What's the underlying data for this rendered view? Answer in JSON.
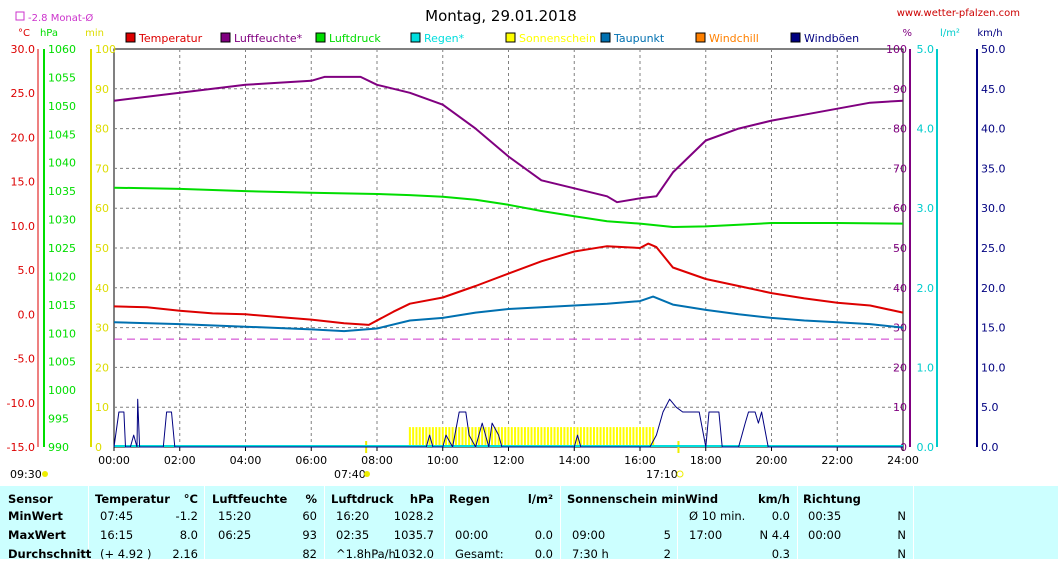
{
  "title": "Montag, 29.01.2018",
  "site": "www.wetter-pfalzen.com",
  "monthly_avg": "-2.8 Monat-Ø",
  "unit_labels": {
    "temp": "°C",
    "pressure": "hPa",
    "minutes": "min",
    "percent": "%",
    "rain": "l/m²",
    "wind": "km/h"
  },
  "markers": {
    "sunrise": "07:40",
    "sunset": "17:10",
    "start": "09:30"
  },
  "colors": {
    "temperature": "#dd0000",
    "humidity": "#800080",
    "pressure": "#00dd00",
    "rain": "#00dddd",
    "sunshine": "#ffff00",
    "dewpoint": "#0070b0",
    "windchill": "#ff8000",
    "gusts": "#000080",
    "avg_line": "#cc33cc"
  },
  "legend": [
    {
      "key": "temperature",
      "label": "Temperatur"
    },
    {
      "key": "humidity",
      "label": "Luftfeuchte*"
    },
    {
      "key": "pressure",
      "label": "Luftdruck"
    },
    {
      "key": "rain",
      "label": "Regen*"
    },
    {
      "key": "sunshine",
      "label": "Sonnenschein"
    },
    {
      "key": "dewpoint",
      "label": "Taupunkt"
    },
    {
      "key": "windchill",
      "label": "Windchill"
    },
    {
      "key": "gusts",
      "label": "Windböen"
    }
  ],
  "chart_data": {
    "type": "line",
    "title": "Montag, 29.01.2018",
    "x_ticks": [
      "00:00",
      "02:00",
      "04:00",
      "06:00",
      "08:00",
      "10:00",
      "12:00",
      "14:00",
      "16:00",
      "18:00",
      "20:00",
      "22:00",
      "24:00"
    ],
    "x_range_hours": [
      0,
      24
    ],
    "axes": {
      "temp": {
        "range": [
          -15,
          30
        ],
        "ticks": [
          "30.0",
          "25.0",
          "20.0",
          "15.0",
          "10.0",
          "5.0",
          "0.0",
          "-5.0",
          "-10.0",
          "-15.0"
        ]
      },
      "pressure": {
        "range": [
          990,
          1060
        ],
        "ticks": [
          "1060",
          "1055",
          "1050",
          "1045",
          "1040",
          "1035",
          "1030",
          "1025",
          "1020",
          "1015",
          "1010",
          "1005",
          "1000",
          "995",
          "990"
        ]
      },
      "minutes": {
        "range": [
          0,
          100
        ],
        "ticks": [
          "100",
          "90",
          "80",
          "70",
          "60",
          "50",
          "40",
          "30",
          "20",
          "10",
          "0"
        ]
      },
      "percent": {
        "range": [
          0,
          100
        ],
        "ticks": [
          "100",
          "90",
          "80",
          "70",
          "60",
          "50",
          "40",
          "30",
          "20",
          "10",
          "0"
        ]
      },
      "rain": {
        "range": [
          0,
          5
        ],
        "ticks": [
          "5.0",
          "4.0",
          "3.0",
          "2.0",
          "1.0",
          "0.0"
        ]
      },
      "wind": {
        "range": [
          0,
          50
        ],
        "ticks": [
          "50.0",
          "45.0",
          "40.0",
          "35.0",
          "30.0",
          "25.0",
          "20.0",
          "15.0",
          "10.0",
          "5.0",
          "0.0"
        ]
      }
    },
    "monthly_avg_temp": -2.8,
    "grid": true,
    "series": [
      {
        "name": "Temperatur",
        "key": "temperature",
        "axis": "temp",
        "points": [
          [
            0,
            0.9
          ],
          [
            1,
            0.8
          ],
          [
            2,
            0.4
          ],
          [
            3,
            0.1
          ],
          [
            4,
            0.0
          ],
          [
            5,
            -0.3
          ],
          [
            6,
            -0.6
          ],
          [
            7,
            -1.0
          ],
          [
            7.75,
            -1.2
          ],
          [
            8.5,
            0.3
          ],
          [
            9,
            1.2
          ],
          [
            10,
            1.9
          ],
          [
            11,
            3.2
          ],
          [
            12,
            4.6
          ],
          [
            13,
            6.0
          ],
          [
            14,
            7.1
          ],
          [
            15,
            7.7
          ],
          [
            16,
            7.5
          ],
          [
            16.25,
            8.0
          ],
          [
            16.5,
            7.6
          ],
          [
            17,
            5.3
          ],
          [
            18,
            4.0
          ],
          [
            19,
            3.2
          ],
          [
            20,
            2.4
          ],
          [
            21,
            1.8
          ],
          [
            22,
            1.3
          ],
          [
            23,
            1.0
          ],
          [
            24,
            0.2
          ]
        ]
      },
      {
        "name": "Luftfeuchte*",
        "key": "humidity",
        "axis": "percent",
        "points": [
          [
            0,
            87
          ],
          [
            1,
            88
          ],
          [
            2,
            89
          ],
          [
            3,
            90
          ],
          [
            4,
            91
          ],
          [
            5,
            91.5
          ],
          [
            6,
            92
          ],
          [
            6.4,
            93
          ],
          [
            7.5,
            93
          ],
          [
            8,
            91
          ],
          [
            9,
            89
          ],
          [
            10,
            86
          ],
          [
            11,
            80
          ],
          [
            12,
            73
          ],
          [
            13,
            67
          ],
          [
            14,
            65
          ],
          [
            15,
            63
          ],
          [
            15.3,
            61.5
          ],
          [
            16,
            62.5
          ],
          [
            16.5,
            63
          ],
          [
            17,
            69
          ],
          [
            18,
            77
          ],
          [
            19,
            80
          ],
          [
            20,
            82
          ],
          [
            21,
            83.5
          ],
          [
            22,
            85
          ],
          [
            23,
            86.5
          ],
          [
            24,
            87
          ]
        ]
      },
      {
        "name": "Luftdruck",
        "key": "pressure",
        "axis": "pressure",
        "points": [
          [
            0,
            1035.6
          ],
          [
            2,
            1035.4
          ],
          [
            4,
            1035.0
          ],
          [
            6,
            1034.7
          ],
          [
            8,
            1034.5
          ],
          [
            9,
            1034.3
          ],
          [
            10,
            1034.0
          ],
          [
            11,
            1033.5
          ],
          [
            12,
            1032.6
          ],
          [
            13,
            1031.5
          ],
          [
            14,
            1030.6
          ],
          [
            15,
            1029.7
          ],
          [
            16,
            1029.3
          ],
          [
            17,
            1028.7
          ],
          [
            18,
            1028.8
          ],
          [
            19,
            1029.1
          ],
          [
            20,
            1029.4
          ],
          [
            22,
            1029.4
          ],
          [
            24,
            1029.3
          ]
        ]
      },
      {
        "name": "Taupunkt",
        "key": "dewpoint",
        "axis": "temp",
        "points": [
          [
            0,
            -0.9
          ],
          [
            2,
            -1.1
          ],
          [
            4,
            -1.4
          ],
          [
            6,
            -1.7
          ],
          [
            7,
            -1.9
          ],
          [
            8,
            -1.6
          ],
          [
            9,
            -0.7
          ],
          [
            10,
            -0.4
          ],
          [
            11,
            0.2
          ],
          [
            12,
            0.6
          ],
          [
            13,
            0.8
          ],
          [
            14,
            1.0
          ],
          [
            15,
            1.2
          ],
          [
            16,
            1.5
          ],
          [
            16.4,
            2.0
          ],
          [
            17,
            1.1
          ],
          [
            18,
            0.5
          ],
          [
            19,
            0.0
          ],
          [
            20,
            -0.4
          ],
          [
            21,
            -0.7
          ],
          [
            22,
            -0.9
          ],
          [
            23,
            -1.1
          ],
          [
            24,
            -1.5
          ]
        ]
      },
      {
        "name": "Windböen",
        "key": "gusts",
        "axis": "wind",
        "points": [
          [
            0,
            0
          ],
          [
            0.15,
            4.4
          ],
          [
            0.3,
            4.4
          ],
          [
            0.35,
            0
          ],
          [
            0.5,
            0
          ],
          [
            0.6,
            1.5
          ],
          [
            0.7,
            0
          ],
          [
            0.72,
            6
          ],
          [
            0.78,
            0
          ],
          [
            1.5,
            0
          ],
          [
            1.6,
            4.4
          ],
          [
            1.75,
            4.4
          ],
          [
            1.85,
            0
          ],
          [
            9.5,
            0
          ],
          [
            9.6,
            1.5
          ],
          [
            9.7,
            0
          ],
          [
            10,
            0
          ],
          [
            10.1,
            1.5
          ],
          [
            10.3,
            0
          ],
          [
            10.5,
            4.4
          ],
          [
            10.7,
            4.4
          ],
          [
            10.8,
            1.5
          ],
          [
            11.0,
            0
          ],
          [
            11.2,
            3
          ],
          [
            11.4,
            0
          ],
          [
            11.5,
            3
          ],
          [
            11.7,
            1.5
          ],
          [
            11.8,
            0
          ],
          [
            14,
            0
          ],
          [
            14.1,
            1.5
          ],
          [
            14.2,
            0
          ],
          [
            16.3,
            0
          ],
          [
            16.5,
            1.5
          ],
          [
            16.7,
            4.4
          ],
          [
            16.9,
            6
          ],
          [
            17.1,
            5
          ],
          [
            17.3,
            4.4
          ],
          [
            17.8,
            4.4
          ],
          [
            18,
            0
          ],
          [
            18.1,
            4.4
          ],
          [
            18.4,
            4.4
          ],
          [
            18.5,
            0
          ],
          [
            19.0,
            0
          ],
          [
            19.1,
            1.5
          ],
          [
            19.2,
            3
          ],
          [
            19.3,
            4.4
          ],
          [
            19.5,
            4.4
          ],
          [
            19.6,
            3
          ],
          [
            19.7,
            4.4
          ],
          [
            19.9,
            0
          ],
          [
            24,
            0
          ]
        ]
      },
      {
        "name": "Sonnenschein",
        "key": "sunshine",
        "axis": "minutes",
        "bars": {
          "start": 9.0,
          "end": 16.4,
          "value": 5
        }
      }
    ]
  },
  "stats": {
    "headers": {
      "sensor": "Sensor",
      "temp": "Temperatur",
      "temp_unit": "°C",
      "hum": "Luftfeuchte",
      "hum_unit": "%",
      "press": "Luftdruck",
      "press_unit": "hPa",
      "rain": "Regen",
      "rain_unit": "l/m²",
      "sun": "Sonnenschein min",
      "wind": "Wind",
      "wind_unit": "km/h",
      "dir": "Richtung"
    },
    "rows": [
      {
        "label": "MinWert",
        "temp_time": "07:45",
        "temp_val": "-1.2",
        "hum_time": "15:20",
        "hum_val": "60",
        "press_time": "16:20",
        "press_val": "1028.2",
        "rain_time": "",
        "rain_val": "",
        "sun_time": "",
        "sun_val": "",
        "wind_time": "Ø 10 min.",
        "wind_val": "0.0",
        "dir_time": "00:35",
        "dir_val": "N"
      },
      {
        "label": "MaxWert",
        "temp_time": "16:15",
        "temp_val": "8.0",
        "hum_time": "06:25",
        "hum_val": "93",
        "press_time": "02:35",
        "press_val": "1035.7",
        "rain_time": "00:00",
        "rain_val": "0.0",
        "sun_time": "09:00",
        "sun_val": "5",
        "wind_time": "17:00",
        "wind_val": "N 4.4",
        "dir_time": "00:00",
        "dir_val": "N"
      },
      {
        "label": "Durchschnitt",
        "temp_time": "(+ 4.92 )",
        "temp_val": "2.16",
        "hum_time": "",
        "hum_val": "82",
        "press_time": "^1.8hPa/h",
        "press_val": "1032.0",
        "rain_time": "Gesamt:",
        "rain_val": "0.0",
        "sun_time": "7:30 h",
        "sun_val": "2",
        "wind_time": "",
        "wind_val": "0.3",
        "dir_time": "",
        "dir_val": "N"
      }
    ]
  }
}
